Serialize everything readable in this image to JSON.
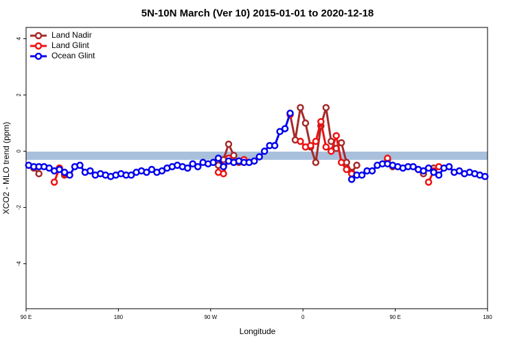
{
  "chart_data": {
    "type": "line",
    "title": "5N-10N March (Ver 10)   2015-01-01 to 2020-12-18",
    "x_label": "Longitude",
    "y_label": "XCO2 - MLO trend (ppm)",
    "legend": "top-left",
    "xlim": [
      90,
      540
    ],
    "ylim": [
      -5.6,
      4.4
    ],
    "xticks": [
      {
        "value": 90,
        "label": "90 E"
      },
      {
        "value": 180,
        "label": "180"
      },
      {
        "value": 270,
        "label": "90 W"
      },
      {
        "value": 360,
        "label": "0"
      },
      {
        "value": 450,
        "label": "90 E"
      },
      {
        "value": 540,
        "label": "180"
      }
    ],
    "yticks": [
      4,
      2,
      0,
      -2,
      -4
    ],
    "x": [
      92.5,
      97.5,
      102.5,
      107.5,
      112.5,
      117.5,
      122.5,
      127.5,
      132.5,
      137.5,
      142.5,
      147.5,
      152.5,
      157.5,
      162.5,
      167.5,
      172.5,
      177.5,
      182.5,
      187.5,
      192.5,
      197.5,
      202.5,
      207.5,
      212.5,
      217.5,
      222.5,
      227.5,
      232.5,
      237.5,
      242.5,
      247.5,
      252.5,
      257.5,
      262.5,
      267.5,
      272.5,
      277.5,
      282.5,
      287.5,
      292.5,
      297.5,
      302.5,
      307.5,
      312.5,
      317.5,
      322.5,
      327.5,
      332.5,
      337.5,
      342.5,
      347.5,
      352.5,
      357.5,
      362.5,
      367.5,
      372.5,
      377.5,
      382.5,
      387.5,
      392.5,
      397.5,
      402.5,
      407.5,
      412.5,
      417.5,
      422.5,
      427.5,
      432.5,
      437.5,
      442.5,
      447.5,
      452.5,
      457.5,
      462.5,
      467.5,
      472.5,
      477.5,
      482.5,
      487.5,
      492.5,
      497.5,
      502.5,
      507.5,
      512.5,
      517.5,
      522.5,
      527.5,
      532.5,
      537.5
    ],
    "series": [
      {
        "name": "Land Nadir",
        "color": "#a52a2a",
        "values": [
          null,
          -0.6,
          -0.8,
          null,
          null,
          null,
          -0.6,
          -0.85,
          null,
          null,
          null,
          null,
          null,
          null,
          null,
          null,
          null,
          null,
          null,
          null,
          null,
          null,
          null,
          null,
          null,
          null,
          null,
          null,
          null,
          null,
          null,
          null,
          null,
          null,
          null,
          null,
          null,
          -0.5,
          -0.3,
          0.25,
          -0.15,
          -0.4,
          null,
          null,
          null,
          null,
          null,
          null,
          null,
          null,
          null,
          1.3,
          0.4,
          1.55,
          1.0,
          0.15,
          -0.4,
          0.9,
          1.55,
          0.35,
          0.1,
          0.3,
          -0.4,
          -0.75,
          -0.5,
          null,
          null,
          null,
          null,
          null,
          -0.3,
          -0.55,
          null,
          null,
          null,
          null,
          -0.65,
          -0.8,
          null,
          -0.6,
          null,
          null,
          null,
          null,
          null,
          null,
          null,
          null,
          null,
          null
        ]
      },
      {
        "name": "Land Glint",
        "color": "#ee1111",
        "values": [
          null,
          null,
          null,
          null,
          null,
          -1.1,
          -0.6,
          -0.8,
          null,
          null,
          null,
          null,
          null,
          null,
          null,
          null,
          null,
          null,
          null,
          null,
          null,
          null,
          null,
          null,
          null,
          null,
          null,
          null,
          null,
          null,
          null,
          null,
          null,
          null,
          null,
          null,
          null,
          -0.75,
          -0.8,
          -0.25,
          -0.4,
          null,
          -0.3,
          null,
          null,
          null,
          null,
          null,
          null,
          null,
          null,
          1.3,
          null,
          0.35,
          0.15,
          0.2,
          0.35,
          1.05,
          0.15,
          0,
          0.55,
          -0.4,
          -0.65,
          -0.8,
          null,
          null,
          null,
          null,
          null,
          null,
          -0.25,
          null,
          null,
          null,
          null,
          null,
          null,
          null,
          -1.1,
          -0.7,
          -0.55,
          null,
          null,
          null,
          null,
          null,
          null,
          null,
          null,
          null
        ]
      },
      {
        "name": "Ocean Glint",
        "color": "#0000ee",
        "values": [
          -0.5,
          -0.55,
          -0.55,
          -0.55,
          -0.6,
          -0.7,
          -0.65,
          -0.75,
          -0.85,
          -0.55,
          -0.5,
          -0.75,
          -0.7,
          -0.85,
          -0.8,
          -0.85,
          -0.9,
          -0.85,
          -0.8,
          -0.85,
          -0.85,
          -0.75,
          -0.7,
          -0.75,
          -0.65,
          -0.75,
          -0.7,
          -0.6,
          -0.55,
          -0.5,
          -0.55,
          -0.6,
          -0.45,
          -0.55,
          -0.4,
          -0.45,
          -0.4,
          -0.25,
          -0.55,
          -0.35,
          -0.4,
          -0.35,
          -0.4,
          -0.4,
          -0.35,
          -0.2,
          0,
          0.2,
          0.2,
          0.7,
          0.8,
          1.35,
          null,
          null,
          null,
          null,
          null,
          null,
          null,
          null,
          null,
          null,
          null,
          -1.0,
          -0.85,
          -0.85,
          -0.7,
          -0.7,
          -0.5,
          -0.45,
          -0.45,
          -0.5,
          -0.55,
          -0.6,
          -0.55,
          -0.55,
          -0.65,
          -0.7,
          -0.6,
          -0.75,
          -0.85,
          -0.6,
          -0.55,
          -0.75,
          -0.7,
          -0.8,
          -0.75,
          -0.8,
          -0.85,
          -0.9
        ]
      }
    ]
  }
}
